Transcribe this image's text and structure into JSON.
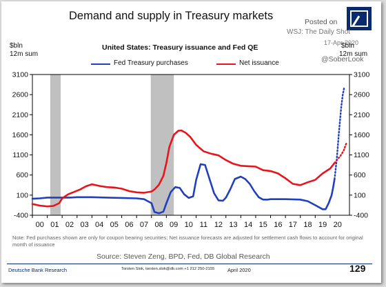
{
  "header": {
    "title": "Demand and supply in Treasury markets",
    "posted_on": "Posted on",
    "posted_source": "WSJ: The Daily Shot",
    "posted_date": "17-Apr-2020",
    "handle": "@SoberLook",
    "logo_icon": "deutsche-bank-logo"
  },
  "colors": {
    "fed": "#1f3fbf",
    "net": "#e8141b",
    "recession": "#c0c0c0"
  },
  "chart_data": {
    "type": "line",
    "title": "United States: Treasury issuance and Fed QE",
    "ylabel_left": [
      "$bln",
      "12m sum"
    ],
    "ylabel_right": [
      "$bln",
      "12m sum"
    ],
    "ylim": [
      -400,
      3100
    ],
    "yticks": [
      3100,
      2600,
      2100,
      1600,
      1100,
      600,
      100,
      -400
    ],
    "ytick_labels": [
      "3100",
      "2600",
      "2100",
      "1600",
      "1100",
      "600",
      "100",
      "-400"
    ],
    "xlim": [
      2000,
      2021.3
    ],
    "xtick_labels": [
      "00",
      "01",
      "02",
      "03",
      "04",
      "05",
      "06",
      "07",
      "08",
      "09",
      "10",
      "11",
      "12",
      "13",
      "14",
      "15",
      "16",
      "17",
      "18",
      "19",
      "20"
    ],
    "recessions": [
      [
        2001.2,
        2001.9
      ],
      [
        2007.95,
        2009.5
      ]
    ],
    "grid": false,
    "legend_position": "top",
    "series": [
      {
        "name": "Fed Treasury purchases",
        "style": "solid",
        "x": [
          2000,
          2000.5,
          2001,
          2001.5,
          2002,
          2002.5,
          2003,
          2003.5,
          2004,
          2005,
          2006,
          2007,
          2007.5,
          2008,
          2008.2,
          2008.5,
          2008.8,
          2009,
          2009.3,
          2009.6,
          2009.9,
          2010.2,
          2010.5,
          2010.8,
          2011,
          2011.3,
          2011.6,
          2011.9,
          2012.2,
          2012.5,
          2012.8,
          2013,
          2013.3,
          2013.6,
          2014,
          2014.3,
          2014.6,
          2014.9,
          2015.2,
          2015.5,
          2015.8,
          2016,
          2017,
          2018,
          2018.5,
          2019,
          2019.5,
          2019.7,
          2019.9,
          2020.1,
          2020.2,
          2020.3
        ],
        "y": [
          10,
          20,
          40,
          40,
          40,
          40,
          50,
          50,
          50,
          40,
          30,
          20,
          0,
          -100,
          -320,
          -350,
          -310,
          -100,
          180,
          300,
          280,
          120,
          30,
          70,
          480,
          870,
          850,
          500,
          150,
          -30,
          -40,
          40,
          250,
          500,
          560,
          500,
          380,
          200,
          50,
          -10,
          -10,
          0,
          0,
          -10,
          -50,
          -150,
          -250,
          -250,
          -100,
          100,
          280,
          500
        ]
      },
      {
        "name": "Fed Treasury purchases (forecast)",
        "style": "dotted",
        "x": [
          2020.3,
          2020.45,
          2020.6,
          2020.75,
          2020.85,
          2020.95
        ],
        "y": [
          500,
          1000,
          1700,
          2300,
          2600,
          2780
        ]
      },
      {
        "name": "Net issuance",
        "style": "solid",
        "x": [
          2000,
          2000.5,
          2001,
          2001.4,
          2001.8,
          2002,
          2002.4,
          2002.8,
          2003.2,
          2003.6,
          2004,
          2004.5,
          2005,
          2005.5,
          2006,
          2006.5,
          2007,
          2007.5,
          2008,
          2008.2,
          2008.5,
          2008.8,
          2009,
          2009.2,
          2009.5,
          2009.8,
          2010,
          2010.3,
          2010.6,
          2011,
          2011.5,
          2012,
          2012.5,
          2013,
          2013.5,
          2014,
          2014.5,
          2015,
          2015.5,
          2016,
          2016.5,
          2017,
          2017.5,
          2018,
          2018.5,
          2019,
          2019.5,
          2020,
          2020.3
        ],
        "y": [
          -120,
          -160,
          -180,
          -170,
          -100,
          20,
          120,
          180,
          240,
          320,
          370,
          330,
          300,
          290,
          260,
          200,
          170,
          160,
          190,
          240,
          360,
          580,
          900,
          1300,
          1600,
          1700,
          1710,
          1650,
          1550,
          1350,
          1190,
          1130,
          1090,
          970,
          880,
          830,
          820,
          810,
          720,
          700,
          640,
          520,
          380,
          350,
          420,
          480,
          640,
          760,
          900
        ]
      },
      {
        "name": "Net issuance (forecast)",
        "style": "dotted",
        "x": [
          2020.3,
          2020.5,
          2020.7,
          2020.9,
          2021.1
        ],
        "y": [
          900,
          990,
          1080,
          1200,
          1400
        ]
      }
    ]
  },
  "footer": {
    "note": "Note: Fed purchases shown are only for coupon bearing securities; Net issuance forecasts are adjusted for settlement cash flows to account for original month of issuance",
    "source": "Source: Steven Zeng, BPD, Fed, DB Global Research",
    "brand": "Deutsche Bank Research",
    "authors": "Torsten Slok, torsten.slok@db.com  +1 212 250-2155",
    "date": "April 2020",
    "page": "129"
  }
}
